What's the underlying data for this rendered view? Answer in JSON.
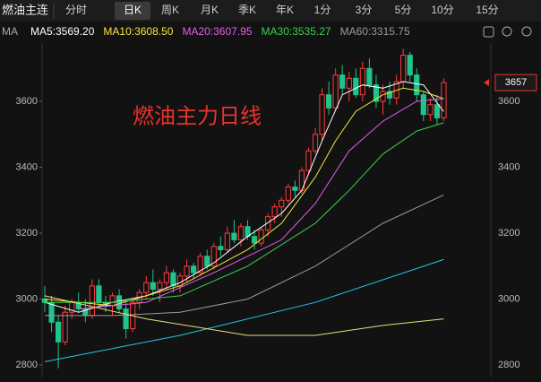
{
  "header": {
    "symbol": "燃油主连",
    "tabs": [
      "分时",
      "日K",
      "周K",
      "月K",
      "季K",
      "年K",
      "1分",
      "3分",
      "5分",
      "10分",
      "15分"
    ],
    "selected_tab": 1
  },
  "chart_data": {
    "type": "candlestick",
    "annotation": "燃油主力日线",
    "legend_prefix": "MA",
    "ylim": [
      2762,
      3777
    ],
    "yticks": [
      2800,
      3000,
      3200,
      3400,
      3600
    ],
    "grid": false,
    "up_color": "#ff3b3b",
    "down_color": "#1ec48c",
    "open": [
      3000,
      2990,
      2930,
      2870,
      2960,
      2990,
      2970,
      2950,
      3040,
      2990,
      2980,
      3010,
      2970,
      2910,
      2990,
      3020,
      3050,
      3030,
      3050,
      3080,
      3040,
      3070,
      3100,
      3080,
      3130,
      3100,
      3160,
      3150,
      3200,
      3180,
      3220,
      3190,
      3170,
      3210,
      3250,
      3280,
      3300,
      3340,
      3330,
      3390,
      3450,
      3500,
      3620,
      3580,
      3680,
      3640,
      3670,
      3620,
      3700,
      3650,
      3600,
      3630,
      3610,
      3660,
      3740,
      3680,
      3620,
      3560,
      3590,
      3550
    ],
    "high": [
      3040,
      3010,
      2950,
      2980,
      3000,
      3020,
      3000,
      3060,
      3060,
      3010,
      3020,
      3030,
      2990,
      3000,
      3030,
      3070,
      3090,
      3060,
      3100,
      3090,
      3080,
      3120,
      3110,
      3140,
      3150,
      3170,
      3190,
      3220,
      3240,
      3230,
      3240,
      3210,
      3220,
      3260,
      3290,
      3310,
      3350,
      3360,
      3400,
      3460,
      3520,
      3640,
      3660,
      3700,
      3710,
      3690,
      3700,
      3720,
      3730,
      3680,
      3650,
      3660,
      3680,
      3760,
      3750,
      3700,
      3630,
      3610,
      3620,
      3670
    ],
    "low": [
      2960,
      2900,
      2790,
      2860,
      2940,
      2960,
      2930,
      2940,
      2980,
      2960,
      2950,
      2960,
      2880,
      2900,
      2970,
      3000,
      3010,
      2990,
      3030,
      3020,
      3020,
      3050,
      3060,
      3070,
      3090,
      3090,
      3130,
      3140,
      3170,
      3160,
      3180,
      3150,
      3160,
      3190,
      3230,
      3250,
      3290,
      3310,
      3320,
      3380,
      3440,
      3480,
      3560,
      3570,
      3620,
      3600,
      3610,
      3600,
      3640,
      3580,
      3560,
      3590,
      3590,
      3640,
      3660,
      3600,
      3540,
      3540,
      3530,
      3540
    ],
    "close": [
      2990,
      2930,
      2870,
      2960,
      2990,
      2970,
      2950,
      3040,
      2990,
      2980,
      3010,
      2970,
      2910,
      2990,
      3020,
      3050,
      3030,
      3050,
      3080,
      3040,
      3070,
      3100,
      3080,
      3130,
      3100,
      3160,
      3150,
      3200,
      3180,
      3220,
      3190,
      3170,
      3210,
      3250,
      3280,
      3300,
      3340,
      3330,
      3390,
      3450,
      3500,
      3620,
      3580,
      3680,
      3640,
      3670,
      3620,
      3700,
      3650,
      3600,
      3630,
      3610,
      3660,
      3740,
      3680,
      3620,
      3560,
      3590,
      3550,
      3657
    ],
    "series": [
      {
        "name": "MA5:3569.20",
        "color": "#ffffff",
        "x": [
          0,
          5,
          10,
          15,
          20,
          25,
          30,
          35,
          38,
          41,
          44,
          47,
          50,
          53,
          56,
          59
        ],
        "values": [
          2990,
          2960,
          2990,
          3010,
          3050,
          3110,
          3190,
          3260,
          3330,
          3480,
          3620,
          3650,
          3640,
          3660,
          3650,
          3569
        ]
      },
      {
        "name": "MA10:3608.50",
        "color": "#f5e63c",
        "x": [
          0,
          10,
          20,
          30,
          35,
          40,
          43,
          46,
          50,
          53,
          56,
          59
        ],
        "values": [
          3000,
          2980,
          3040,
          3150,
          3230,
          3370,
          3480,
          3570,
          3620,
          3640,
          3630,
          3608
        ]
      },
      {
        "name": "MA20:3607.95",
        "color": "#e45ee8",
        "x": [
          5,
          15,
          25,
          35,
          40,
          45,
          50,
          55,
          59
        ],
        "values": [
          2970,
          2990,
          3080,
          3180,
          3290,
          3450,
          3540,
          3600,
          3608
        ]
      },
      {
        "name": "MA30:3535.27",
        "color": "#3ccf4e",
        "x": [
          0,
          10,
          20,
          30,
          40,
          45,
          50,
          55,
          59
        ],
        "values": [
          2990,
          2990,
          3010,
          3100,
          3230,
          3330,
          3440,
          3510,
          3535
        ]
      },
      {
        "name": "MA60:3315.75",
        "color": "#9a9a9a",
        "x": [
          0,
          10,
          20,
          30,
          40,
          50,
          59
        ],
        "values": [
          2950,
          2950,
          2960,
          3000,
          3100,
          3230,
          3316
        ]
      },
      {
        "color": "#22c8e6",
        "x": [
          0,
          20,
          40,
          59
        ],
        "values": [
          2810,
          2890,
          2990,
          3120
        ]
      },
      {
        "color": "#e8e07a",
        "x": [
          0,
          15,
          30,
          40,
          50,
          59
        ],
        "values": [
          3010,
          2940,
          2890,
          2890,
          2920,
          2940
        ]
      }
    ]
  }
}
